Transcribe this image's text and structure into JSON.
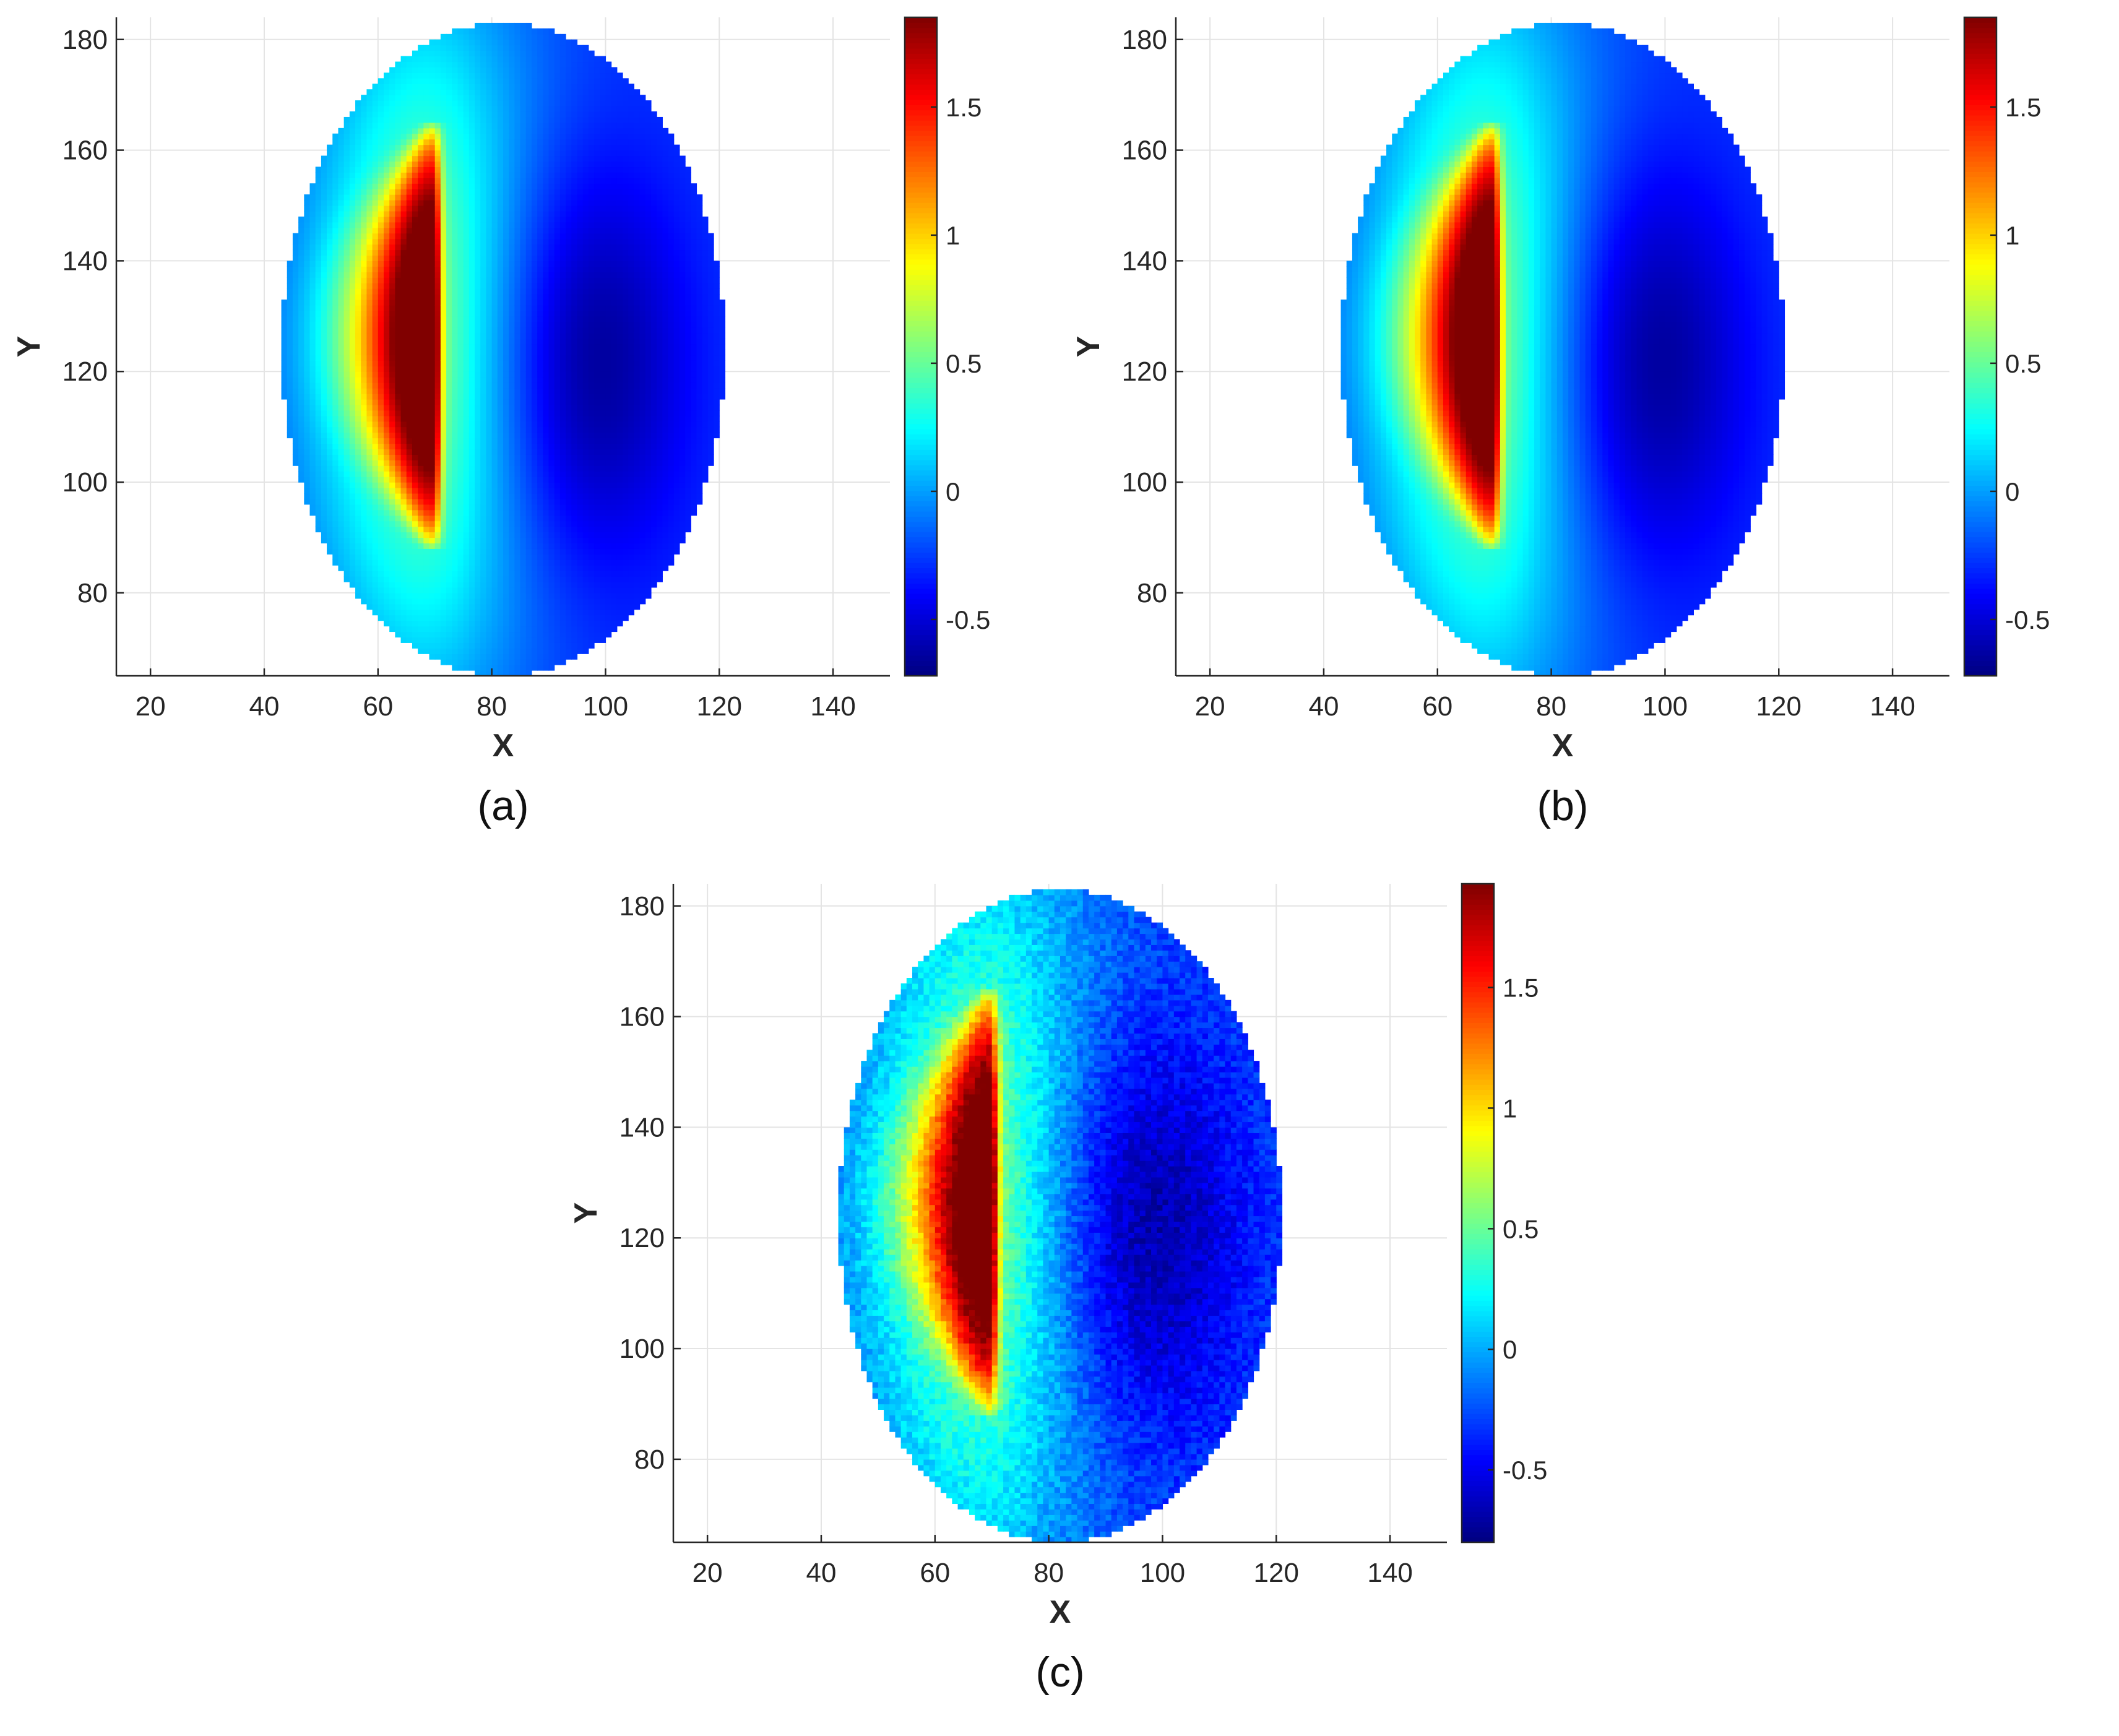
{
  "chart_data": [
    {
      "type": "heatmap",
      "panel_label": "(a)",
      "xlabel": "X",
      "ylabel": "Y",
      "xlim": [
        14,
        150
      ],
      "ylim": [
        65,
        184
      ],
      "xticks": [
        20,
        40,
        60,
        80,
        100,
        120,
        140
      ],
      "yticks": [
        80,
        100,
        120,
        140,
        160,
        180
      ],
      "grid": true,
      "colorbar": {
        "colormap": "jet",
        "range": [
          -0.72,
          1.85
        ],
        "ticks": [
          -0.5,
          0,
          0.5,
          1,
          1.5
        ],
        "tick_labels": [
          "-0.5",
          "0",
          "0.5",
          "1",
          "1.5"
        ]
      },
      "field": {
        "ellipse_center": [
          82,
          124
        ],
        "ellipse_radii": [
          39,
          59
        ],
        "ridge_x": 69.5,
        "ridge_peak": 1.8,
        "ridge_y_range": [
          88,
          165
        ],
        "min_center": [
          97,
          122
        ],
        "min_value": -0.68,
        "noise": 0.0
      }
    },
    {
      "type": "heatmap",
      "panel_label": "(b)",
      "xlabel": "X",
      "ylabel": "Y",
      "xlim": [
        14,
        150
      ],
      "ylim": [
        65,
        184
      ],
      "xticks": [
        20,
        40,
        60,
        80,
        100,
        120,
        140
      ],
      "yticks": [
        80,
        100,
        120,
        140,
        160,
        180
      ],
      "grid": true,
      "colorbar": {
        "colormap": "jet",
        "range": [
          -0.72,
          1.85
        ],
        "ticks": [
          -0.5,
          0,
          0.5,
          1,
          1.5
        ],
        "tick_labels": [
          "-0.5",
          "0",
          "0.5",
          "1",
          "1.5"
        ]
      },
      "field": {
        "ellipse_center": [
          82,
          124
        ],
        "ellipse_radii": [
          39,
          59
        ],
        "ridge_x": 69.5,
        "ridge_peak": 1.8,
        "ridge_y_range": [
          88,
          165
        ],
        "min_center": [
          97,
          122
        ],
        "min_value": -0.68,
        "noise": 0.0
      }
    },
    {
      "type": "heatmap",
      "panel_label": "(c)",
      "xlabel": "X",
      "ylabel": "Y",
      "xlim": [
        14,
        150
      ],
      "ylim": [
        65,
        184
      ],
      "xticks": [
        20,
        40,
        60,
        80,
        100,
        120,
        140
      ],
      "yticks": [
        80,
        100,
        120,
        140,
        160,
        180
      ],
      "grid": true,
      "colorbar": {
        "colormap": "jet",
        "range": [
          -0.8,
          1.93
        ],
        "ticks": [
          -0.5,
          0,
          0.5,
          1,
          1.5
        ],
        "tick_labels": [
          "-0.5",
          "0",
          "0.5",
          "1",
          "1.5"
        ]
      },
      "field": {
        "ellipse_center": [
          82,
          124
        ],
        "ellipse_radii": [
          39,
          59
        ],
        "ridge_x": 69.5,
        "ridge_peak": 1.85,
        "ridge_y_range": [
          88,
          165
        ],
        "min_center": [
          97,
          122
        ],
        "min_value": -0.72,
        "noise": 0.22
      }
    }
  ]
}
